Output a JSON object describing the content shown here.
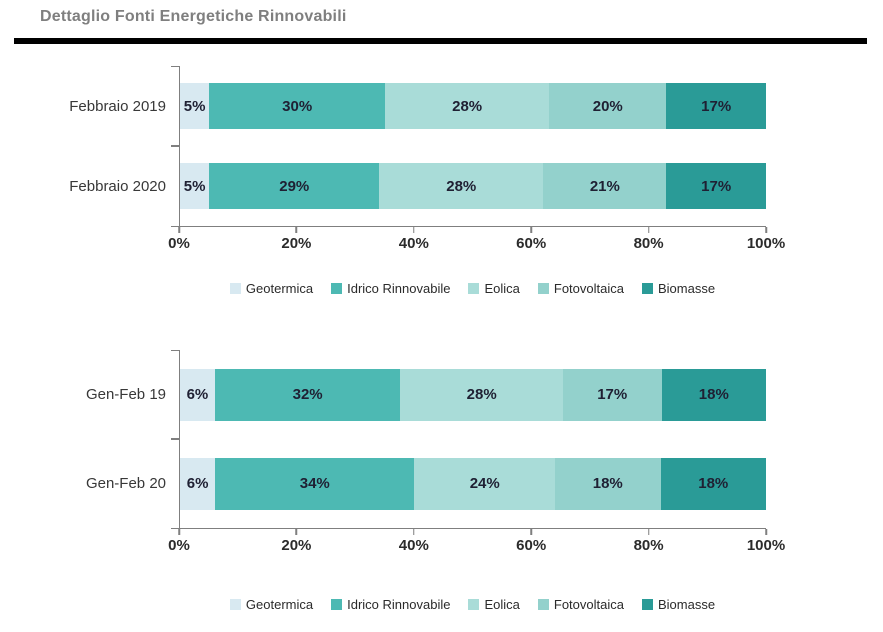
{
  "page": {
    "title": "Dettaglio Fonti Energetiche Rinnovabili"
  },
  "colors": {
    "axis": "#7f7f7f",
    "title_text": "#7f7f7f",
    "divider": "#000000",
    "geotermica": "#d8e9f1",
    "idrico_rinnovabile": "#4db9b3",
    "eolica": "#a9dcd8",
    "fotovoltaica": "#93d1cc",
    "biomasse": "#2a9b97"
  },
  "chart_data": [
    {
      "type": "bar",
      "stacked": true,
      "orientation": "horizontal",
      "title": "",
      "categories": [
        "Febbraio 2019",
        "Febbraio 2020"
      ],
      "series": [
        {
          "name": "Geotermica",
          "color": "#d8e9f1",
          "values": [
            5,
            5
          ]
        },
        {
          "name": "Idrico Rinnovabile",
          "color": "#4db9b3",
          "values": [
            30,
            29
          ]
        },
        {
          "name": "Eolica",
          "color": "#a9dcd8",
          "values": [
            28,
            28
          ]
        },
        {
          "name": "Fotovoltaica",
          "color": "#93d1cc",
          "values": [
            20,
            21
          ]
        },
        {
          "name": "Biomasse",
          "color": "#2a9b97",
          "values": [
            17,
            17
          ]
        }
      ],
      "data_label_suffix": "%",
      "xlim": [
        0,
        100
      ],
      "x_tick_labels": [
        "0%",
        "20%",
        "40%",
        "60%",
        "80%",
        "100%"
      ],
      "grid": false,
      "legend_position": "bottom",
      "legend_entries": [
        "Geotermica",
        "Idrico Rinnovabile",
        "Eolica",
        "Fotovoltaica",
        "Biomasse"
      ]
    },
    {
      "type": "bar",
      "stacked": true,
      "orientation": "horizontal",
      "title": "",
      "categories": [
        "Gen-Feb 19",
        "Gen-Feb 20"
      ],
      "series": [
        {
          "name": "Geotermica",
          "color": "#d8e9f1",
          "values": [
            6,
            6
          ]
        },
        {
          "name": "Idrico Rinnovabile",
          "color": "#4db9b3",
          "values": [
            32,
            34
          ]
        },
        {
          "name": "Eolica",
          "color": "#a9dcd8",
          "values": [
            28,
            24
          ]
        },
        {
          "name": "Fotovoltaica",
          "color": "#93d1cc",
          "values": [
            17,
            18
          ]
        },
        {
          "name": "Biomasse",
          "color": "#2a9b97",
          "values": [
            18,
            18
          ]
        }
      ],
      "data_label_suffix": "%",
      "xlim": [
        0,
        100
      ],
      "x_tick_labels": [
        "0%",
        "20%",
        "40%",
        "60%",
        "80%",
        "100%"
      ],
      "grid": false,
      "legend_position": "bottom",
      "legend_entries": [
        "Geotermica",
        "Idrico Rinnovabile",
        "Eolica",
        "Fotovoltaica",
        "Biomasse"
      ]
    }
  ]
}
